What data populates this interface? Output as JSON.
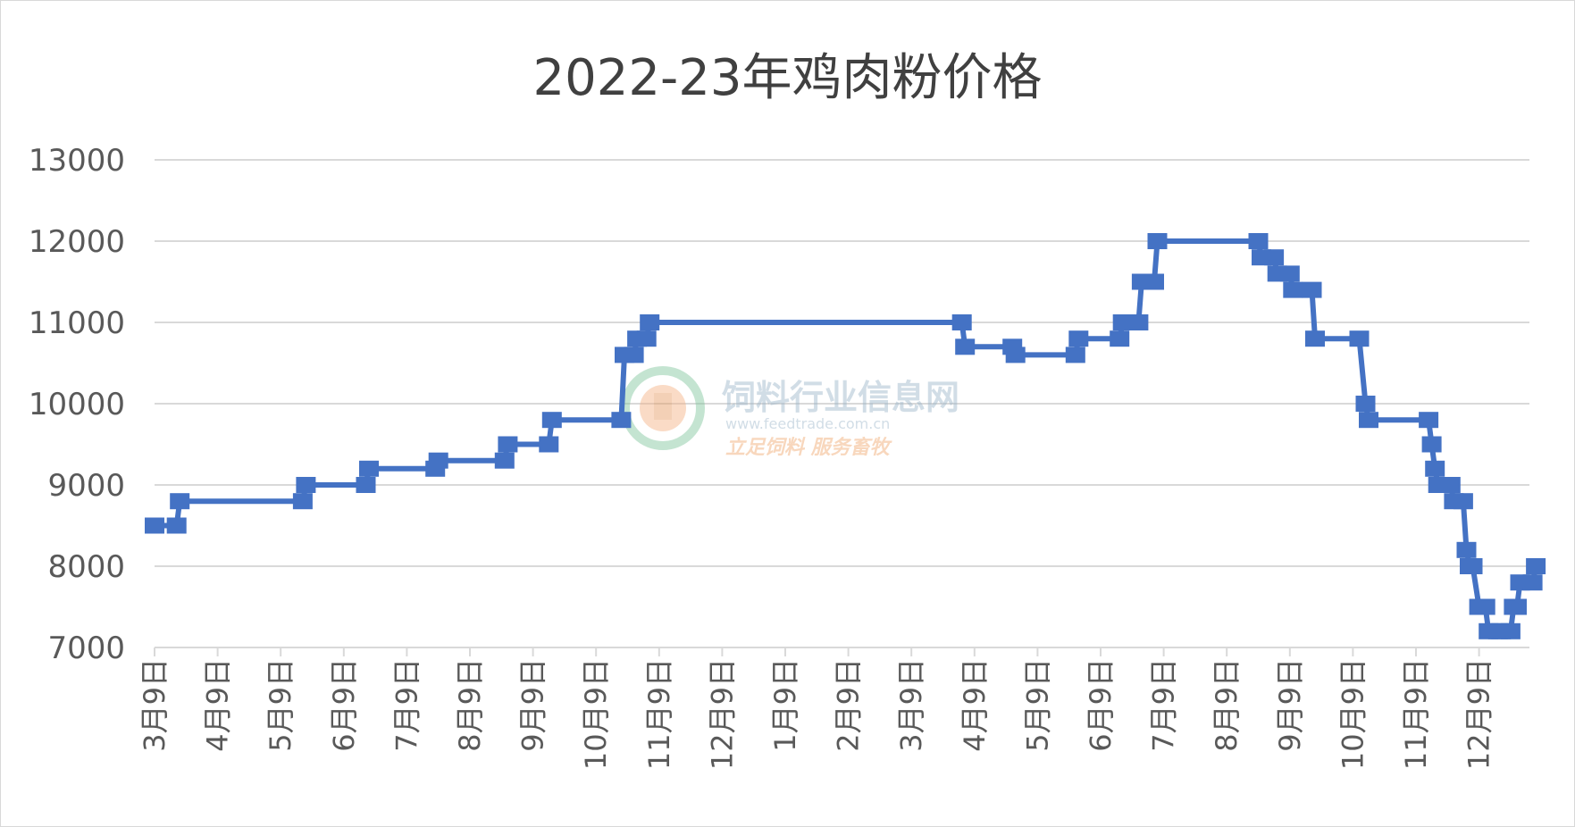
{
  "chart_data": {
    "type": "line",
    "title": "2022-23年鸡肉粉价格",
    "xlabel": "",
    "ylabel": "",
    "ylim": [
      7000,
      13000
    ],
    "y_ticks": [
      "7000",
      "8000",
      "9000",
      "10000",
      "11000",
      "12000",
      "13000"
    ],
    "x_ticks": [
      "3月9日",
      "4月9日",
      "5月9日",
      "6月9日",
      "7月9日",
      "8月9日",
      "9月9日",
      "10月9日",
      "11月9日",
      "12月9日",
      "1月9日",
      "2月9日",
      "3月9日",
      "4月9日",
      "5月9日",
      "6月9日",
      "7月9日",
      "8月9日",
      "9月9日",
      "10月9日",
      "11月9日",
      "12月9日"
    ],
    "grid": true,
    "legend": "none",
    "series": [
      {
        "color": "#4472c4",
        "points": [
          {
            "x": 0.0,
            "y": 8500
          },
          {
            "x": 0.35,
            "y": 8500
          },
          {
            "x": 0.4,
            "y": 8800
          },
          {
            "x": 2.35,
            "y": 8800
          },
          {
            "x": 2.4,
            "y": 9000
          },
          {
            "x": 3.35,
            "y": 9000
          },
          {
            "x": 3.4,
            "y": 9200
          },
          {
            "x": 4.45,
            "y": 9200
          },
          {
            "x": 4.5,
            "y": 9300
          },
          {
            "x": 5.55,
            "y": 9300
          },
          {
            "x": 5.6,
            "y": 9500
          },
          {
            "x": 6.25,
            "y": 9500
          },
          {
            "x": 6.3,
            "y": 9800
          },
          {
            "x": 7.4,
            "y": 9800
          },
          {
            "x": 7.45,
            "y": 10600
          },
          {
            "x": 7.6,
            "y": 10600
          },
          {
            "x": 7.65,
            "y": 10800
          },
          {
            "x": 7.8,
            "y": 10800
          },
          {
            "x": 7.85,
            "y": 11000
          },
          {
            "x": 12.8,
            "y": 11000
          },
          {
            "x": 12.85,
            "y": 10700
          },
          {
            "x": 13.6,
            "y": 10700
          },
          {
            "x": 13.65,
            "y": 10600
          },
          {
            "x": 14.6,
            "y": 10600
          },
          {
            "x": 14.65,
            "y": 10800
          },
          {
            "x": 15.3,
            "y": 10800
          },
          {
            "x": 15.35,
            "y": 11000
          },
          {
            "x": 15.6,
            "y": 11000
          },
          {
            "x": 15.65,
            "y": 11500
          },
          {
            "x": 15.85,
            "y": 11500
          },
          {
            "x": 15.9,
            "y": 12000
          },
          {
            "x": 17.5,
            "y": 12000
          },
          {
            "x": 17.55,
            "y": 11800
          },
          {
            "x": 17.75,
            "y": 11800
          },
          {
            "x": 17.8,
            "y": 11600
          },
          {
            "x": 18.0,
            "y": 11600
          },
          {
            "x": 18.05,
            "y": 11400
          },
          {
            "x": 18.35,
            "y": 11400
          },
          {
            "x": 18.4,
            "y": 10800
          },
          {
            "x": 19.1,
            "y": 10800
          },
          {
            "x": 19.2,
            "y": 10000
          },
          {
            "x": 19.25,
            "y": 9800
          },
          {
            "x": 20.2,
            "y": 9800
          },
          {
            "x": 20.25,
            "y": 9500
          },
          {
            "x": 20.3,
            "y": 9200
          },
          {
            "x": 20.35,
            "y": 9000
          },
          {
            "x": 20.55,
            "y": 9000
          },
          {
            "x": 20.6,
            "y": 8800
          },
          {
            "x": 20.75,
            "y": 8800
          },
          {
            "x": 20.8,
            "y": 8200
          },
          {
            "x": 20.85,
            "y": 8000
          },
          {
            "x": 20.9,
            "y": 8000
          },
          {
            "x": 21.0,
            "y": 7500
          },
          {
            "x": 21.1,
            "y": 7500
          },
          {
            "x": 21.15,
            "y": 7200
          },
          {
            "x": 21.3,
            "y": 7200
          },
          {
            "x": 21.35,
            "y": 7200
          },
          {
            "x": 21.5,
            "y": 7200
          },
          {
            "x": 21.55,
            "y": 7500
          },
          {
            "x": 21.6,
            "y": 7500
          },
          {
            "x": 21.65,
            "y": 7800
          },
          {
            "x": 21.85,
            "y": 7800
          },
          {
            "x": 21.9,
            "y": 8000
          }
        ]
      }
    ]
  },
  "watermark": {
    "site_name": "饲料行业信息网",
    "url": "www.feedtrade.com.cn",
    "slogan": "立足饲料  服务畜牧"
  }
}
